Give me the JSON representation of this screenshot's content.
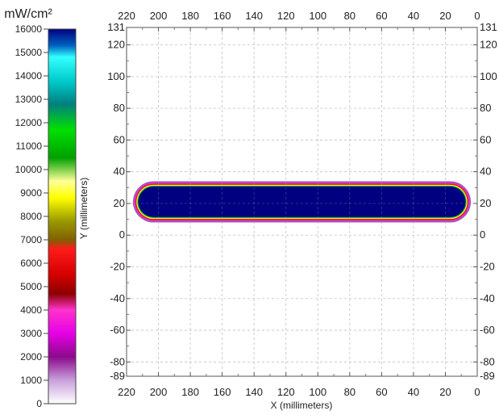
{
  "chart_data": {
    "type": "heatmap",
    "colorbar": {
      "unit": "mW/cm²",
      "ticks": [
        0,
        1000,
        2000,
        3000,
        4000,
        5000,
        6000,
        7000,
        8000,
        9000,
        10000,
        11000,
        12000,
        13000,
        14000,
        15000,
        16000
      ],
      "range": [
        0,
        16000
      ],
      "stops": [
        {
          "v": 0,
          "c": "#ffffff"
        },
        {
          "v": 1000,
          "c": "#c9a0dc"
        },
        {
          "v": 2000,
          "c": "#8b0a8b"
        },
        {
          "v": 3000,
          "c": "#e600e6"
        },
        {
          "v": 4000,
          "c": "#ff33cc"
        },
        {
          "v": 4700,
          "c": "#8b0000"
        },
        {
          "v": 5500,
          "c": "#d40000"
        },
        {
          "v": 6600,
          "c": "#ff1a1a"
        },
        {
          "v": 7000,
          "c": "#806000"
        },
        {
          "v": 7800,
          "c": "#9a9a00"
        },
        {
          "v": 8800,
          "c": "#ffff00"
        },
        {
          "v": 9500,
          "c": "#ffff99"
        },
        {
          "v": 10500,
          "c": "#00a000"
        },
        {
          "v": 11700,
          "c": "#00e000"
        },
        {
          "v": 12800,
          "c": "#008080"
        },
        {
          "v": 13800,
          "c": "#00cccc"
        },
        {
          "v": 14800,
          "c": "#33ffff"
        },
        {
          "v": 15300,
          "c": "#0060c0"
        },
        {
          "v": 16000,
          "c": "#000080"
        }
      ]
    },
    "plot": {
      "xlabel": "X (millimeters)",
      "ylabel": "Y (millimeters)",
      "xlim": [
        220,
        0
      ],
      "ylim": [
        -89,
        131
      ],
      "xticks": [
        220,
        200,
        180,
        160,
        140,
        120,
        100,
        80,
        60,
        40,
        20,
        0
      ],
      "yticks_left": [
        131,
        120,
        100,
        80,
        60,
        40,
        20,
        0,
        -20,
        -40,
        -60,
        -80,
        -89
      ],
      "yticks_right": [
        131,
        120,
        100,
        80,
        60,
        40,
        20,
        0,
        -20,
        -40,
        -60,
        -80,
        -89
      ],
      "grid": true,
      "gridlines_x": [
        200,
        180,
        160,
        140,
        120,
        100,
        80,
        60,
        40,
        20
      ],
      "gridlines_y": [
        120,
        100,
        80,
        60,
        40,
        20,
        0,
        -20,
        -40,
        -60,
        -80
      ],
      "hotspot": {
        "shape": "rounded-rectangle",
        "x_range": [
          4,
          216
        ],
        "y_range": [
          8,
          34
        ],
        "core_value": 16000,
        "center_y": 20,
        "bands": [
          {
            "offset": 6,
            "value": 1500
          },
          {
            "offset": 4,
            "value": 3500
          },
          {
            "offset": 3,
            "value": 6000
          },
          {
            "offset": 2,
            "value": 9000
          },
          {
            "offset": 1,
            "value": 12000
          },
          {
            "offset": 0,
            "value": 16000
          }
        ]
      }
    }
  }
}
